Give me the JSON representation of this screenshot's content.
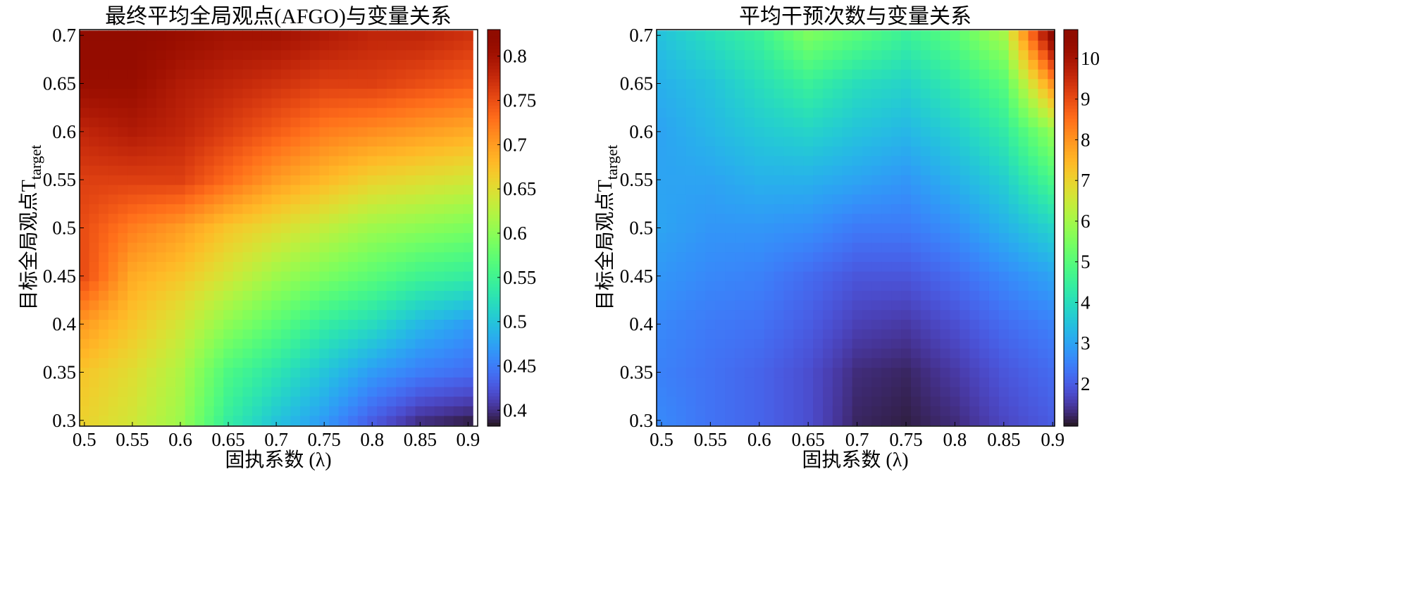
{
  "chart_data": [
    {
      "type": "heatmap",
      "title": "最终平均全局观点(AFGO)与变量关系",
      "xlabel": "固执系数 (λ)",
      "ylabel_main": "目标全局观点T",
      "ylabel_sub": "target",
      "x": [
        0.5,
        0.55,
        0.6,
        0.65,
        0.7,
        0.75,
        0.8,
        0.85,
        0.9
      ],
      "y": [
        0.7,
        0.65,
        0.6,
        0.55,
        0.5,
        0.45,
        0.4,
        0.35,
        0.3
      ],
      "z": [
        [
          0.82,
          0.82,
          0.81,
          0.8,
          0.8,
          0.79,
          0.78,
          0.78,
          0.77
        ],
        [
          0.81,
          0.81,
          0.79,
          0.78,
          0.77,
          0.76,
          0.76,
          0.75,
          0.74
        ],
        [
          0.78,
          0.79,
          0.78,
          0.76,
          0.74,
          0.72,
          0.71,
          0.7,
          0.69
        ],
        [
          0.76,
          0.76,
          0.76,
          0.73,
          0.7,
          0.68,
          0.66,
          0.65,
          0.64
        ],
        [
          0.75,
          0.72,
          0.7,
          0.67,
          0.65,
          0.63,
          0.61,
          0.6,
          0.59
        ],
        [
          0.75,
          0.69,
          0.67,
          0.64,
          0.61,
          0.59,
          0.57,
          0.55,
          0.54
        ],
        [
          0.7,
          0.67,
          0.64,
          0.6,
          0.57,
          0.54,
          0.52,
          0.49,
          0.47
        ],
        [
          0.67,
          0.65,
          0.62,
          0.56,
          0.53,
          0.5,
          0.47,
          0.45,
          0.44
        ],
        [
          0.66,
          0.64,
          0.61,
          0.54,
          0.5,
          0.47,
          0.43,
          0.4,
          0.39
        ]
      ],
      "xlim": [
        0.495,
        0.91
      ],
      "ylim": [
        0.294,
        0.706
      ],
      "xticks": [
        "0.5",
        "0.55",
        "0.6",
        "0.65",
        "0.7",
        "0.75",
        "0.8",
        "0.85",
        "0.9"
      ],
      "yticks": [
        "0.7",
        "0.65",
        "0.6",
        "0.55",
        "0.5",
        "0.45",
        "0.4",
        "0.35",
        "0.3"
      ],
      "colorbar": {
        "range": [
          0.382,
          0.83
        ],
        "ticks": [
          "0.4",
          "0.45",
          "0.5",
          "0.55",
          "0.6",
          "0.65",
          "0.7",
          "0.75",
          "0.8"
        ]
      },
      "colormap": "turbo"
    },
    {
      "type": "heatmap",
      "title": "平均干预次数与变量关系",
      "xlabel": "固执系数 (λ)",
      "ylabel_main": "目标全局观点T",
      "ylabel_sub": "target",
      "x": [
        0.5,
        0.55,
        0.6,
        0.65,
        0.7,
        0.75,
        0.8,
        0.85,
        0.9
      ],
      "y": [
        0.7,
        0.65,
        0.6,
        0.55,
        0.5,
        0.45,
        0.4,
        0.35,
        0.3
      ],
      "z": [
        [
          3.5,
          4.0,
          4.5,
          5.5,
          5.0,
          4.5,
          5.0,
          6.0,
          10.5
        ],
        [
          3.2,
          3.5,
          4.0,
          4.5,
          4.0,
          3.8,
          4.3,
          5.0,
          8.0
        ],
        [
          3.0,
          3.3,
          3.6,
          3.8,
          3.5,
          3.3,
          3.7,
          4.3,
          5.8
        ],
        [
          3.0,
          3.0,
          3.2,
          3.2,
          3.0,
          2.8,
          3.2,
          3.7,
          4.8
        ],
        [
          3.0,
          2.8,
          2.8,
          2.7,
          2.4,
          2.4,
          2.7,
          3.2,
          3.8
        ],
        [
          2.8,
          2.6,
          2.5,
          2.2,
          1.9,
          1.9,
          2.2,
          2.6,
          3.0
        ],
        [
          2.6,
          2.4,
          2.3,
          2.0,
          1.6,
          1.5,
          1.8,
          2.2,
          2.5
        ],
        [
          2.5,
          2.3,
          2.1,
          1.8,
          1.3,
          1.2,
          1.5,
          1.9,
          2.2
        ],
        [
          2.6,
          2.3,
          2.1,
          1.8,
          1.2,
          1.1,
          1.3,
          1.7,
          2.0
        ]
      ],
      "xlim": [
        0.495,
        0.902
      ],
      "ylim": [
        0.294,
        0.706
      ],
      "xticks": [
        "0.5",
        "0.55",
        "0.6",
        "0.65",
        "0.7",
        "0.75",
        "0.8",
        "0.85",
        "0.9"
      ],
      "yticks": [
        "0.7",
        "0.65",
        "0.6",
        "0.55",
        "0.5",
        "0.45",
        "0.4",
        "0.35",
        "0.3"
      ],
      "colorbar": {
        "range": [
          0.96,
          10.71
        ],
        "ticks": [
          "2",
          "3",
          "4",
          "5",
          "6",
          "7",
          "8",
          "9",
          "10"
        ]
      },
      "colormap": "turbo"
    }
  ]
}
